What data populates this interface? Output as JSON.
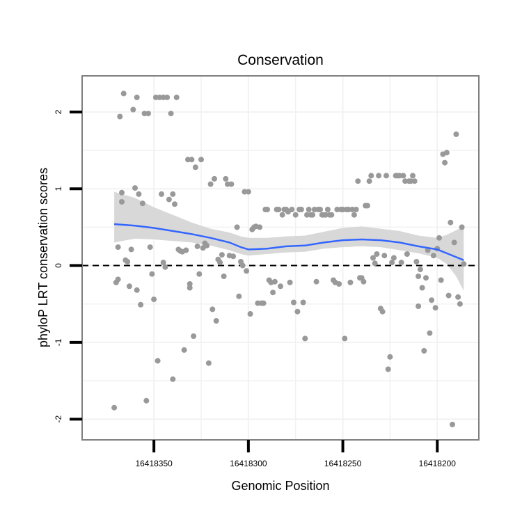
{
  "chart_data": {
    "type": "scatter",
    "title": "Conservation",
    "xlabel": "Genomic Position",
    "ylabel": "phyloP LRT conservation scores",
    "x_reversed": true,
    "xlim": [
      16418178,
      16418388
    ],
    "ylim": [
      -2.27,
      2.47
    ],
    "x_ticks": [
      16418350,
      16418300,
      16418250,
      16418200
    ],
    "x_tick_labels": [
      "16418350",
      "16418300",
      "16418250",
      "16418200"
    ],
    "y_ticks": [
      -2,
      -1,
      0,
      1,
      2
    ],
    "y_tick_labels": [
      "-2",
      "-1",
      "0",
      "1",
      "2"
    ],
    "grid": true,
    "reference_line": {
      "y": 0,
      "style": "dashed"
    },
    "colors": {
      "points": "#999999",
      "smooth": "#3366ff",
      "band": "#d6d6d6",
      "panel_border": "#7f7f7f",
      "grid": "#f2f2f2"
    },
    "points": [
      [
        16418371,
        -1.85
      ],
      [
        16418370,
        -0.22
      ],
      [
        16418369,
        0.24
      ],
      [
        16418369,
        -0.18
      ],
      [
        16418368,
        1.94
      ],
      [
        16418367,
        0.95
      ],
      [
        16418367,
        0.83
      ],
      [
        16418366,
        2.24
      ],
      [
        16418365,
        0.07
      ],
      [
        16418364,
        0.05
      ],
      [
        16418363,
        -0.27
      ],
      [
        16418362,
        0.21
      ],
      [
        16418361,
        2.03
      ],
      [
        16418360,
        1.01
      ],
      [
        16418359,
        -0.32
      ],
      [
        16418359,
        2.19
      ],
      [
        16418358,
        0.93
      ],
      [
        16418357,
        -0.51
      ],
      [
        16418356,
        0.81
      ],
      [
        16418355,
        1.98
      ],
      [
        16418354,
        -1.76
      ],
      [
        16418353,
        1.98
      ],
      [
        16418352,
        0.24
      ],
      [
        16418351,
        -0.11
      ],
      [
        16418350,
        -0.44
      ],
      [
        16418349,
        2.19
      ],
      [
        16418348,
        -1.24
      ],
      [
        16418347,
        2.19
      ],
      [
        16418346,
        0.93
      ],
      [
        16418345,
        2.19
      ],
      [
        16418345,
        0.04
      ],
      [
        16418344,
        -0.02
      ],
      [
        16418343,
        2.19
      ],
      [
        16418342,
        0.86
      ],
      [
        16418341,
        1.98
      ],
      [
        16418340,
        0.93
      ],
      [
        16418340,
        -1.48
      ],
      [
        16418339,
        0.8
      ],
      [
        16418338,
        2.19
      ],
      [
        16418337,
        0.21
      ],
      [
        16418336,
        0.19
      ],
      [
        16418335,
        0.18
      ],
      [
        16418334,
        -1.1
      ],
      [
        16418333,
        0.2
      ],
      [
        16418332,
        1.38
      ],
      [
        16418331,
        -0.24
      ],
      [
        16418331,
        -0.29
      ],
      [
        16418330,
        1.38
      ],
      [
        16418329,
        -0.92
      ],
      [
        16418328,
        1.28
      ],
      [
        16418327,
        0.25
      ],
      [
        16418326,
        -0.11
      ],
      [
        16418325,
        1.38
      ],
      [
        16418324,
        0.23
      ],
      [
        16418323,
        0.29
      ],
      [
        16418322,
        0.26
      ],
      [
        16418321,
        -1.27
      ],
      [
        16418320,
        1.06
      ],
      [
        16418319,
        -0.57
      ],
      [
        16418318,
        1.13
      ],
      [
        16418317,
        -0.72
      ],
      [
        16418316,
        0.08
      ],
      [
        16418315,
        0.04
      ],
      [
        16418314,
        0.14
      ],
      [
        16418313,
        -0.14
      ],
      [
        16418312,
        1.13
      ],
      [
        16418311,
        1.06
      ],
      [
        16418310,
        0.13
      ],
      [
        16418309,
        1.06
      ],
      [
        16418308,
        0.12
      ],
      [
        16418306,
        0.5
      ],
      [
        16418305,
        -0.4
      ],
      [
        16418304,
        0.05
      ],
      [
        16418303,
        0.0
      ],
      [
        16418302,
        0.96
      ],
      [
        16418301,
        -0.07
      ],
      [
        16418300,
        0.96
      ],
      [
        16418299,
        -0.63
      ],
      [
        16418298,
        0.47
      ],
      [
        16418297,
        0.5
      ],
      [
        16418296,
        0.51
      ],
      [
        16418295,
        -0.49
      ],
      [
        16418294,
        0.5
      ],
      [
        16418293,
        -0.49
      ],
      [
        16418292,
        -0.49
      ],
      [
        16418291,
        0.73
      ],
      [
        16418290,
        0.73
      ],
      [
        16418289,
        -0.19
      ],
      [
        16418288,
        -0.22
      ],
      [
        16418287,
        -0.35
      ],
      [
        16418286,
        -0.21
      ],
      [
        16418285,
        0.73
      ],
      [
        16418284,
        0.73
      ],
      [
        16418283,
        -0.27
      ],
      [
        16418282,
        0.66
      ],
      [
        16418281,
        0.73
      ],
      [
        16418280,
        0.73
      ],
      [
        16418279,
        0.7
      ],
      [
        16418278,
        -0.22
      ],
      [
        16418277,
        0.73
      ],
      [
        16418276,
        -0.48
      ],
      [
        16418275,
        0.66
      ],
      [
        16418274,
        -0.6
      ],
      [
        16418273,
        0.73
      ],
      [
        16418272,
        0.73
      ],
      [
        16418271,
        -0.48
      ],
      [
        16418270,
        -0.95
      ],
      [
        16418269,
        0.66
      ],
      [
        16418268,
        0.73
      ],
      [
        16418267,
        0.66
      ],
      [
        16418266,
        0.66
      ],
      [
        16418265,
        0.73
      ],
      [
        16418264,
        -0.21
      ],
      [
        16418263,
        0.73
      ],
      [
        16418262,
        0.73
      ],
      [
        16418261,
        0.66
      ],
      [
        16418260,
        0.66
      ],
      [
        16418259,
        0.66
      ],
      [
        16418258,
        0.73
      ],
      [
        16418257,
        0.66
      ],
      [
        16418256,
        0.66
      ],
      [
        16418255,
        -0.19
      ],
      [
        16418254,
        -0.22
      ],
      [
        16418253,
        0.73
      ],
      [
        16418252,
        -0.24
      ],
      [
        16418251,
        0.73
      ],
      [
        16418250,
        0.73
      ],
      [
        16418249,
        -0.95
      ],
      [
        16418248,
        0.73
      ],
      [
        16418247,
        0.73
      ],
      [
        16418246,
        -0.22
      ],
      [
        16418245,
        0.73
      ],
      [
        16418244,
        0.66
      ],
      [
        16418243,
        0.73
      ],
      [
        16418242,
        1.1
      ],
      [
        16418241,
        -0.16
      ],
      [
        16418240,
        -0.16
      ],
      [
        16418239,
        -0.21
      ],
      [
        16418238,
        0.78
      ],
      [
        16418237,
        0.78
      ],
      [
        16418236,
        1.1
      ],
      [
        16418235,
        1.17
      ],
      [
        16418234,
        0.1
      ],
      [
        16418233,
        0.03
      ],
      [
        16418232,
        0.15
      ],
      [
        16418231,
        1.17
      ],
      [
        16418230,
        -0.56
      ],
      [
        16418229,
        -0.6
      ],
      [
        16418228,
        0.13
      ],
      [
        16418227,
        1.17
      ],
      [
        16418226,
        -1.35
      ],
      [
        16418225,
        -1.19
      ],
      [
        16418224,
        0.04
      ],
      [
        16418223,
        0.1
      ],
      [
        16418222,
        1.17
      ],
      [
        16418221,
        1.17
      ],
      [
        16418220,
        1.17
      ],
      [
        16418219,
        0.04
      ],
      [
        16418218,
        1.17
      ],
      [
        16418217,
        1.1
      ],
      [
        16418216,
        0.15
      ],
      [
        16418215,
        1.1
      ],
      [
        16418214,
        1.1
      ],
      [
        16418213,
        1.17
      ],
      [
        16418212,
        1.1
      ],
      [
        16418211,
        0.05
      ],
      [
        16418210,
        -0.14
      ],
      [
        16418210,
        -0.53
      ],
      [
        16418209,
        -0.05
      ],
      [
        16418208,
        -0.29
      ],
      [
        16418207,
        -1.11
      ],
      [
        16418206,
        -0.16
      ],
      [
        16418205,
        0.2
      ],
      [
        16418204,
        -0.88
      ],
      [
        16418203,
        -0.45
      ],
      [
        16418202,
        0.13
      ],
      [
        16418201,
        -0.55
      ],
      [
        16418200,
        0.22
      ],
      [
        16418199,
        0.36
      ],
      [
        16418198,
        -0.19
      ],
      [
        16418197,
        1.45
      ],
      [
        16418196,
        1.34
      ],
      [
        16418195,
        1.47
      ],
      [
        16418194,
        -0.39
      ],
      [
        16418193,
        0.56
      ],
      [
        16418192,
        -2.07
      ],
      [
        16418191,
        0.3
      ],
      [
        16418190,
        1.71
      ],
      [
        16418189,
        -0.41
      ],
      [
        16418188,
        -0.5
      ],
      [
        16418187,
        0.5
      ],
      [
        16418186,
        0.02
      ]
    ],
    "smooth": {
      "x": [
        16418371,
        16418360,
        16418350,
        16418340,
        16418330,
        16418320,
        16418310,
        16418304,
        16418300,
        16418290,
        16418280,
        16418270,
        16418260,
        16418250,
        16418240,
        16418230,
        16418220,
        16418210,
        16418200,
        16418195,
        16418190,
        16418186
      ],
      "y": [
        0.54,
        0.52,
        0.49,
        0.45,
        0.41,
        0.36,
        0.3,
        0.24,
        0.21,
        0.22,
        0.25,
        0.26,
        0.3,
        0.33,
        0.34,
        0.33,
        0.3,
        0.25,
        0.21,
        0.16,
        0.11,
        0.07
      ],
      "lower": [
        0.3,
        0.35,
        0.34,
        0.32,
        0.3,
        0.26,
        0.2,
        0.15,
        0.13,
        0.15,
        0.17,
        0.18,
        0.22,
        0.24,
        0.25,
        0.24,
        0.2,
        0.16,
        0.1,
        0.02,
        -0.14,
        -0.33
      ],
      "upper": [
        0.96,
        0.88,
        0.76,
        0.66,
        0.56,
        0.48,
        0.43,
        0.38,
        0.36,
        0.36,
        0.38,
        0.39,
        0.44,
        0.49,
        0.51,
        0.48,
        0.45,
        0.39,
        0.36,
        0.4,
        0.46,
        0.51
      ]
    }
  }
}
